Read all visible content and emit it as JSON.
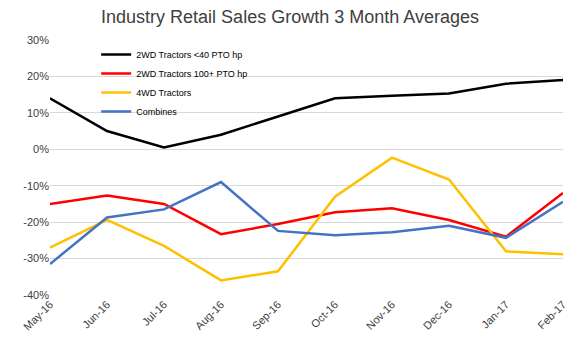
{
  "chart_data": {
    "type": "line",
    "title": "Industry Retail Sales Growth 3 Month Averages",
    "categories": [
      "May-16",
      "Jun-16",
      "Jul-16",
      "Aug-16",
      "Sep-16",
      "Oct-16",
      "Nov-16",
      "Dec-16",
      "Jan-17",
      "Feb-17"
    ],
    "series": [
      {
        "name": "2WD Tractors <40 PTO hp",
        "color": "#000000",
        "values": [
          14,
          5,
          0.5,
          4,
          9,
          14,
          14.7,
          15.3,
          18,
          19
        ]
      },
      {
        "name": "2WD Tractors 100+ PTO hp",
        "color": "#ff0000",
        "values": [
          -15,
          -12.7,
          -15,
          -23.3,
          -20.5,
          -17.3,
          -16.2,
          -19.4,
          -24,
          -12
        ]
      },
      {
        "name": "4WD Tractors",
        "color": "#ffc000",
        "values": [
          -27,
          -19.4,
          -26.5,
          -36,
          -33.5,
          -13,
          -2.3,
          -8.3,
          -28,
          -28.8
        ]
      },
      {
        "name": "Combines",
        "color": "#4472c4",
        "values": [
          -31.5,
          -18.7,
          -16.5,
          -9,
          -22.4,
          -23.6,
          -22.8,
          -21,
          -24.3,
          -14.4
        ]
      }
    ],
    "ylim": [
      -40,
      30
    ],
    "yticks": [
      {
        "value": -40,
        "label": "-40%"
      },
      {
        "value": -30,
        "label": "-30%"
      },
      {
        "value": -20,
        "label": "-20%"
      },
      {
        "value": -10,
        "label": "-10%"
      },
      {
        "value": 0,
        "label": "0%"
      },
      {
        "value": 10,
        "label": "10%"
      },
      {
        "value": 20,
        "label": "20%"
      },
      {
        "value": 30,
        "label": "30%"
      }
    ],
    "grid": true,
    "legend": "top left"
  }
}
